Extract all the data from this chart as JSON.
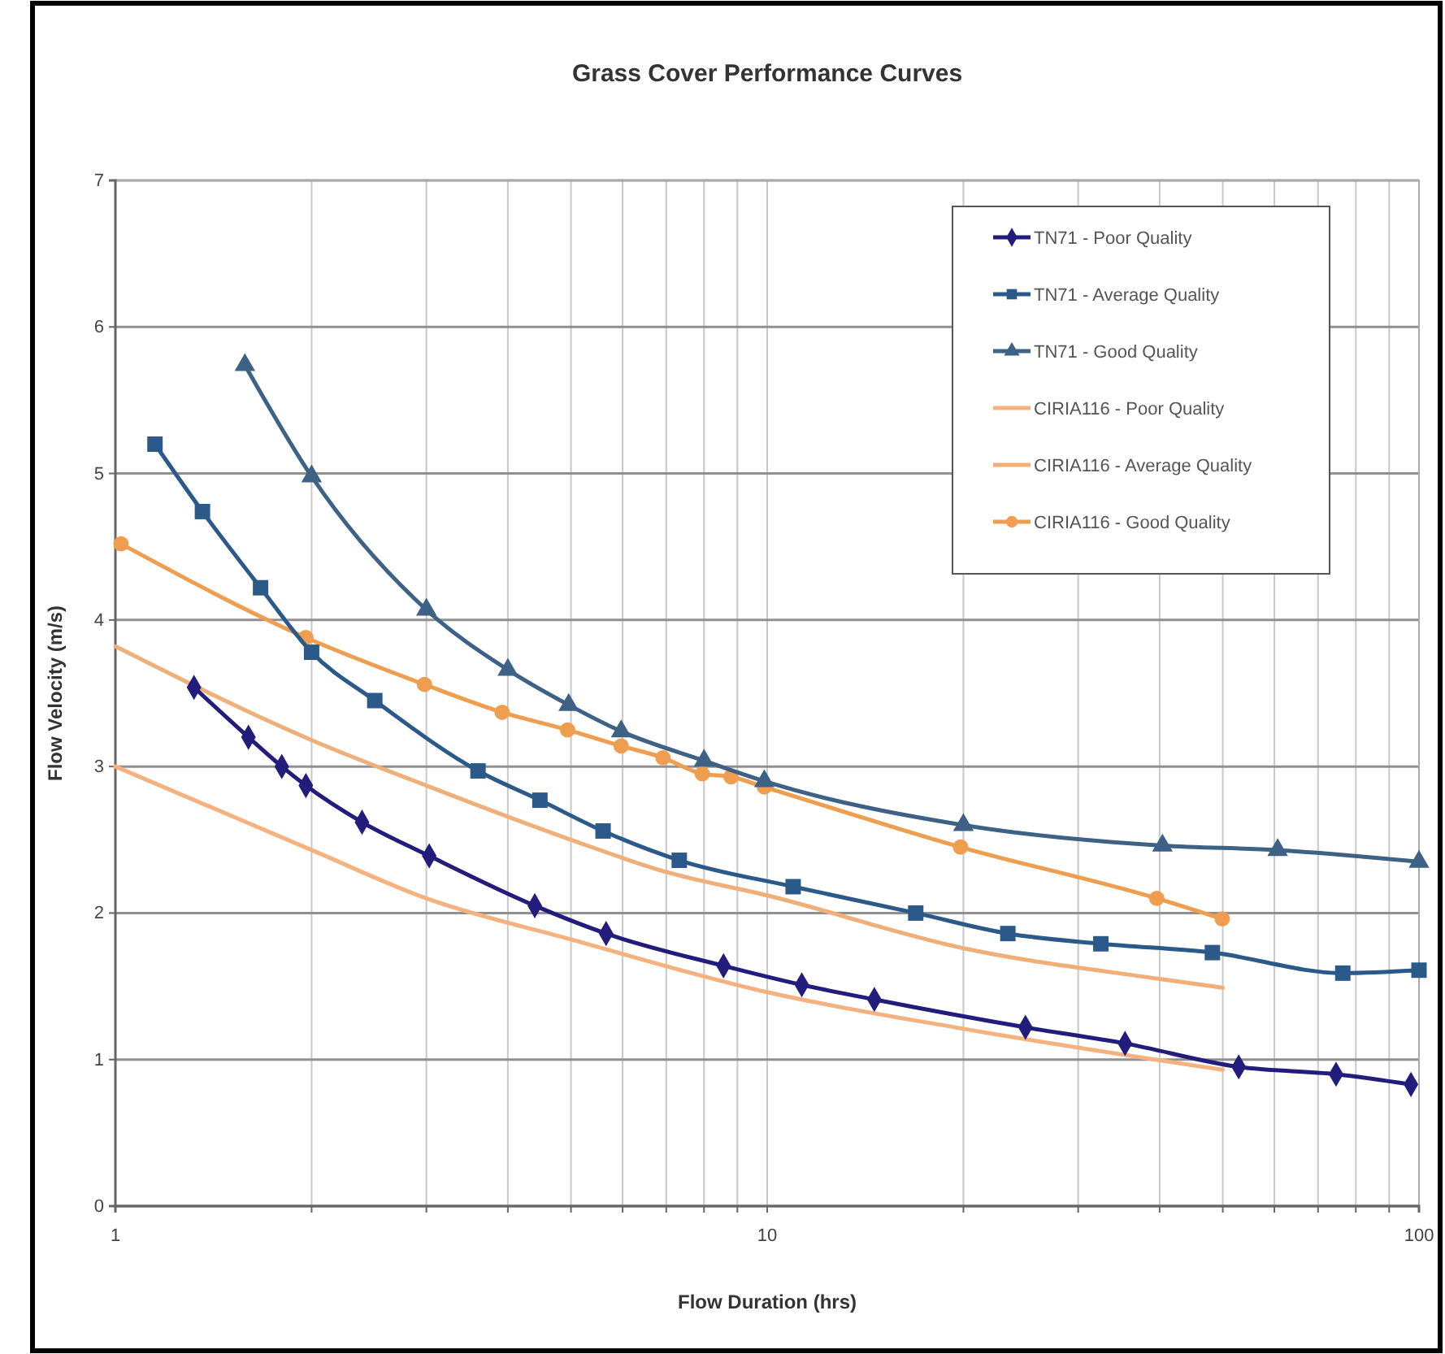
{
  "chart_data": {
    "type": "line",
    "title": "Grass Cover Performance Curves",
    "xlabel": "Flow Duration (hrs)",
    "ylabel": "Flow Velocity (m/s)",
    "log": "x",
    "grid": true,
    "legend": "top right",
    "line_style": "solid",
    "xlim": [
      1,
      100
    ],
    "xticks": [
      1,
      {
        "value": 2,
        "label": null
      },
      {
        "value": 3,
        "label": null
      },
      {
        "value": 4,
        "label": null
      },
      {
        "value": 5,
        "label": null
      },
      {
        "value": 6,
        "label": null
      },
      {
        "value": 7,
        "label": null
      },
      {
        "value": 8,
        "label": null
      },
      {
        "value": 9,
        "label": null
      },
      10,
      {
        "value": 20,
        "label": null
      },
      {
        "value": 30,
        "label": null
      },
      {
        "value": 40,
        "label": null
      },
      {
        "value": 50,
        "label": null
      },
      {
        "value": 60,
        "label": null
      },
      {
        "value": 70,
        "label": null
      },
      {
        "value": 80,
        "label": null
      },
      {
        "value": 90,
        "label": null
      },
      100
    ],
    "ylim": [
      0,
      7
    ],
    "yticks": [
      0,
      1,
      2,
      3,
      4,
      5,
      6,
      7
    ],
    "series": [
      {
        "name": "TN71 - Poor Quality",
        "color": "#221c7c",
        "marker": "diamond",
        "x": [
          1.32,
          1.6,
          1.8,
          1.96,
          2.39,
          3.03,
          4.4,
          5.66,
          8.57,
          11.3,
          14.6,
          24.9,
          35.4,
          52.9,
          74.6,
          97.2
        ],
        "values": [
          3.54,
          3.2,
          3.0,
          2.87,
          2.62,
          2.39,
          2.05,
          1.86,
          1.64,
          1.51,
          1.41,
          1.22,
          1.11,
          0.95,
          0.9,
          0.83
        ]
      },
      {
        "name": "TN71 - Average Quality",
        "color": "#2b5a8a",
        "marker": "square",
        "x": [
          1.15,
          1.36,
          1.67,
          2.0,
          2.5,
          3.6,
          4.48,
          5.6,
          7.33,
          10.96,
          16.9,
          23.4,
          32.5,
          48.2,
          76.4,
          100
        ],
        "values": [
          5.2,
          4.74,
          4.22,
          3.78,
          3.45,
          2.97,
          2.77,
          2.56,
          2.36,
          2.18,
          2.0,
          1.86,
          1.79,
          1.73,
          1.59,
          1.61
        ]
      },
      {
        "name": "TN71 - Good Quality",
        "color": "#3e6186",
        "marker": "triangle",
        "x": [
          1.58,
          2.0,
          3.0,
          4.0,
          4.96,
          5.97,
          8.0,
          9.9,
          20.0,
          40.4,
          60.7,
          100
        ],
        "values": [
          5.74,
          4.98,
          4.07,
          3.66,
          3.42,
          3.24,
          3.04,
          2.9,
          2.6,
          2.46,
          2.43,
          2.35
        ]
      },
      {
        "name": "CIRIA116 - Poor Quality",
        "color": "#f5b27e",
        "marker": "none",
        "x": [
          1,
          2,
          3,
          5,
          10,
          20,
          50
        ],
        "values": [
          3.0,
          2.43,
          2.1,
          1.82,
          1.46,
          1.21,
          0.93
        ]
      },
      {
        "name": "CIRIA116 - Average Quality",
        "color": "#f0ae78",
        "marker": "none",
        "x": [
          1,
          2,
          3,
          5,
          7,
          10,
          20,
          40,
          50
        ],
        "values": [
          3.82,
          3.18,
          2.87,
          2.5,
          2.28,
          2.12,
          1.76,
          1.55,
          1.49
        ]
      },
      {
        "name": "CIRIA116 - Good Quality",
        "color": "#ee9e4e",
        "marker": "circle",
        "x": [
          1.02,
          1.96,
          2.98,
          3.92,
          4.94,
          5.97,
          6.92,
          7.95,
          8.8,
          9.9,
          19.8,
          39.6,
          49.9
        ],
        "values": [
          4.52,
          3.88,
          3.56,
          3.37,
          3.25,
          3.14,
          3.06,
          2.95,
          2.93,
          2.86,
          2.45,
          2.1,
          1.96
        ]
      }
    ]
  }
}
